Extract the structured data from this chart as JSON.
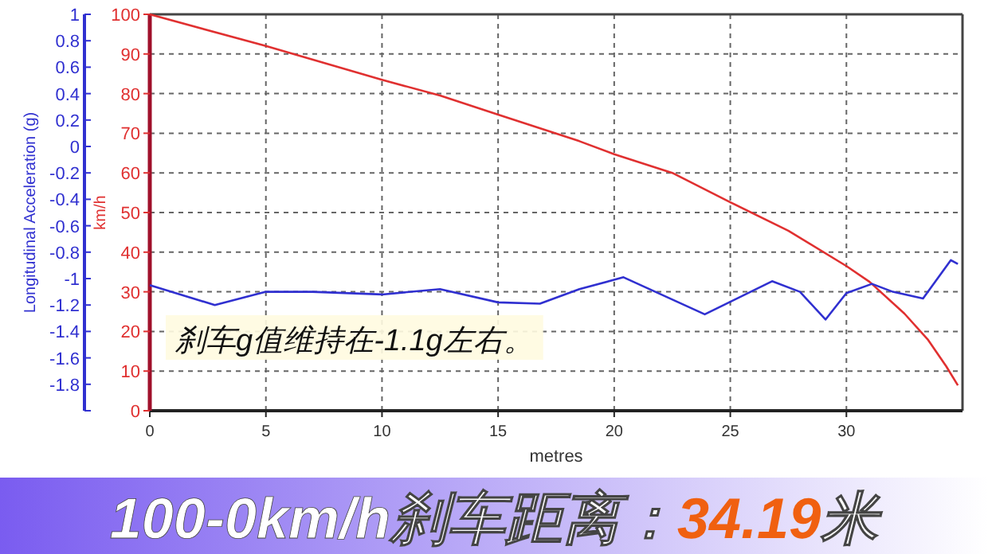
{
  "chart_data": {
    "type": "line",
    "title": "100-0km/h刹车距离：**34.19**米",
    "xlabel": "metres",
    "ylabel": "km/h",
    "y2label": "Longitudinal Acceleration (g)",
    "xlim": [
      0,
      35
    ],
    "xticks": [
      0,
      5,
      10,
      15,
      20,
      25,
      30
    ],
    "ylim": [
      0,
      100
    ],
    "yticks": [
      0,
      10,
      20,
      30,
      40,
      50,
      60,
      70,
      80,
      90,
      100
    ],
    "y2lim": [
      -2,
      1
    ],
    "y2ticks": [
      {
        "value": -2,
        "label": null
      },
      -1.8,
      -1.6,
      -1.4,
      -1.2,
      -1,
      -0.8,
      -0.6,
      -0.4,
      -0.2,
      0,
      0.2,
      0.4,
      0.6,
      0.8,
      1
    ],
    "grid": true,
    "annotations": [
      "刹车g值维持在-1.1g左右。"
    ],
    "series": [
      {
        "color": "#e03030",
        "x": [
          0,
          5,
          10,
          12.5,
          15,
          18.5,
          20,
          22.5,
          25,
          27.5,
          30,
          31,
          32.5,
          33.5,
          34.3,
          34.8
        ],
        "values": [
          100,
          92,
          83.5,
          79.5,
          74.7,
          68,
          64.7,
          60,
          52.6,
          45.4,
          36.5,
          32.5,
          24.5,
          18,
          11.2,
          6.4
        ]
      },
      {
        "color": "#3030d0",
        "axis": "y2",
        "x": [
          0,
          2.8,
          5,
          7,
          10,
          12.5,
          15,
          16.8,
          18.5,
          20.4,
          23.9,
          26.8,
          28,
          29.1,
          30,
          31.1,
          32,
          33.3,
          34.5,
          34.8
        ],
        "values": [
          -1.05,
          -1.2,
          -1.1,
          -1.1,
          -1.12,
          -1.08,
          -1.18,
          -1.19,
          -1.08,
          -0.99,
          -1.27,
          -1.02,
          -1.1,
          -1.31,
          -1.11,
          -1.04,
          -1.1,
          -1.15,
          -0.86,
          -0.89
        ]
      }
    ]
  }
}
